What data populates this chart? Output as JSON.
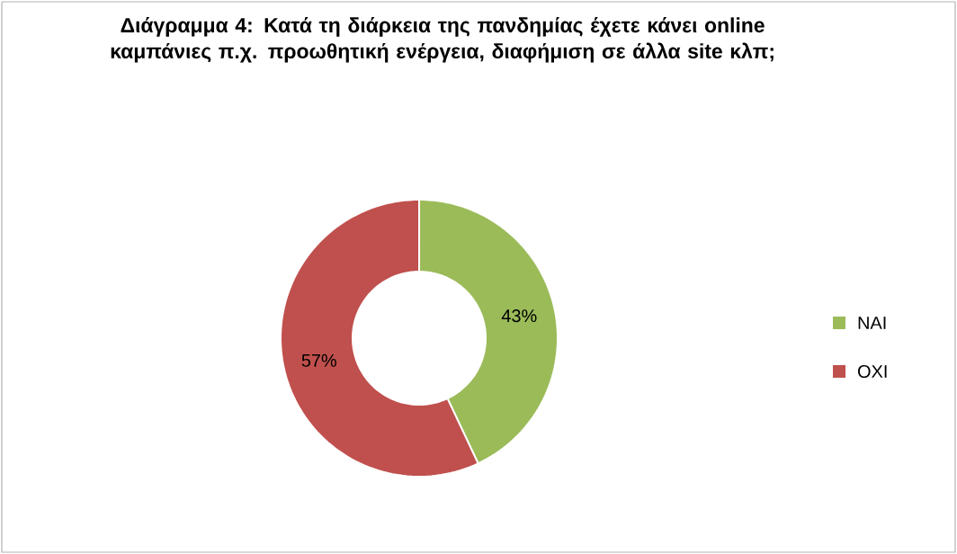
{
  "chart_data": {
    "type": "donut",
    "title": "Διάγραμμα 4: Κατά τη διάρκεια της πανδημίας έχετε κάνει online καμπάνιες π.χ. προωθητική ενέργεια, διαφήμιση σε άλλα site κλπ;",
    "categories": [
      "NAI",
      "OXI"
    ],
    "values": [
      43,
      57
    ],
    "colors": [
      "#9bbb59",
      "#c0504d"
    ],
    "value_labels": [
      "43%",
      "57%"
    ],
    "legend": "right"
  }
}
